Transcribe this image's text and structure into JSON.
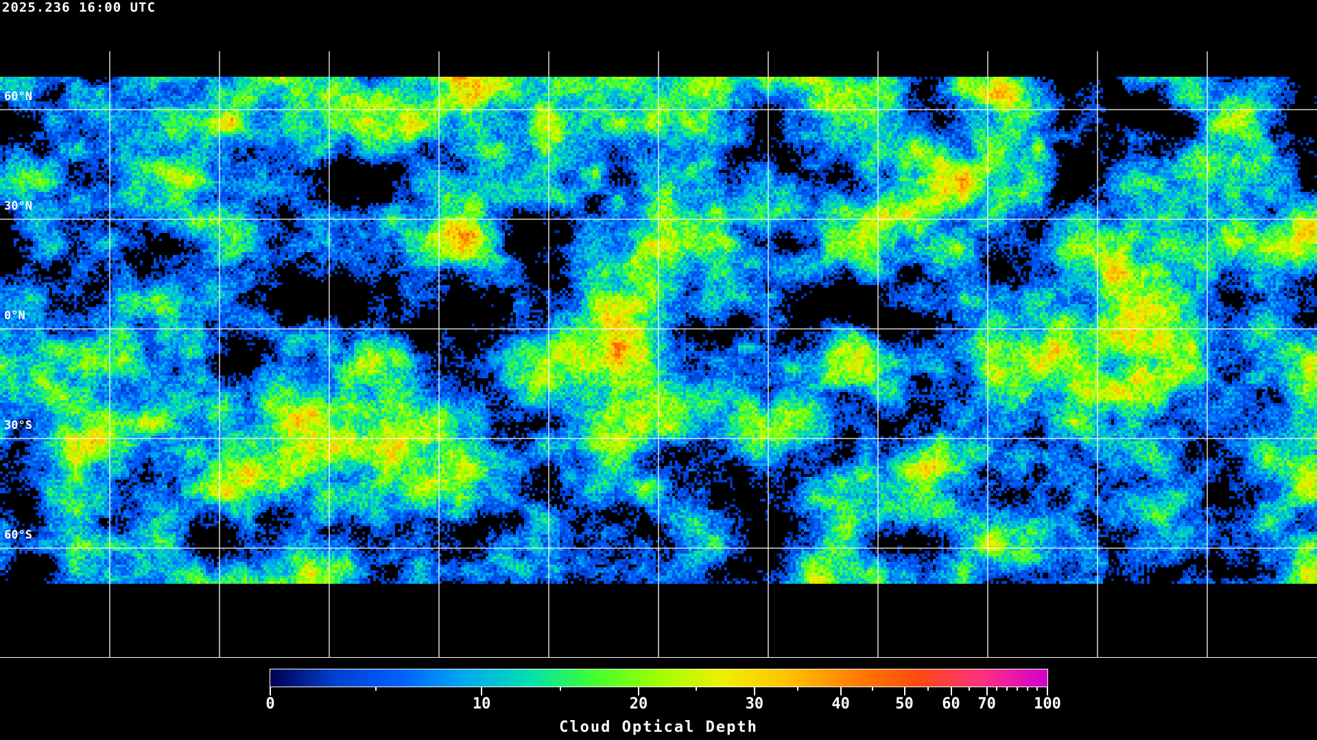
{
  "header": {
    "timestamp": "2025.236 16:00 UTC"
  },
  "map": {
    "projection": "equirectangular",
    "background": "#000000",
    "gridline_color": "#ffffff",
    "coastline_color": "#ffffff",
    "lat_labels": [
      "60°N",
      "30°N",
      "0°N",
      "30°S",
      "60°S"
    ],
    "lat_values": [
      60,
      30,
      0,
      -30,
      -60
    ],
    "lon_gridlines": [
      -150,
      -120,
      -90,
      -60,
      -30,
      0,
      30,
      60,
      90,
      120,
      150
    ]
  },
  "colorbar": {
    "title": "Cloud Optical Depth",
    "range": [
      0,
      100
    ],
    "major_ticks": [
      {
        "value": 0,
        "label": "0"
      },
      {
        "value": 10,
        "label": "10"
      },
      {
        "value": 20,
        "label": "20"
      },
      {
        "value": 30,
        "label": "30"
      },
      {
        "value": 40,
        "label": "40"
      },
      {
        "value": 50,
        "label": "50"
      },
      {
        "value": 60,
        "label": "60"
      },
      {
        "value": 70,
        "label": "70"
      },
      {
        "value": 100,
        "label": "100"
      }
    ],
    "minor_ticks": [
      5,
      15,
      25,
      35,
      45,
      55,
      65,
      75,
      80,
      85,
      90,
      95
    ],
    "colormap": [
      "#000050",
      "#0040d0",
      "#0060ff",
      "#00a8f0",
      "#00e0b0",
      "#40ff30",
      "#a0ff00",
      "#f0f000",
      "#ffc000",
      "#ff8000",
      "#ff4a10",
      "#ff3080",
      "#d000d0"
    ]
  }
}
